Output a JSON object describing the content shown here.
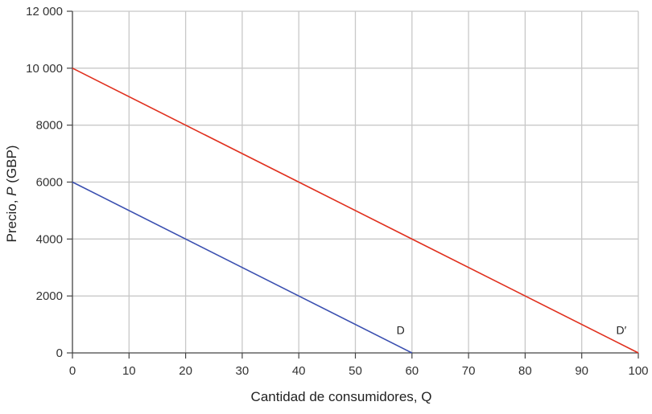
{
  "chart_data": {
    "type": "line",
    "xlabel": "Cantidad de consumidores, Q",
    "ylabel_prefix": "Precio, ",
    "ylabel_var": "P",
    "ylabel_suffix": " (GBP)",
    "xlim": [
      0,
      100
    ],
    "ylim": [
      0,
      12000
    ],
    "xticks": [
      0,
      10,
      20,
      30,
      40,
      50,
      60,
      70,
      80,
      90,
      100
    ],
    "xtick_labels": [
      "0",
      "10",
      "20",
      "30",
      "40",
      "50",
      "60",
      "70",
      "80",
      "90",
      "100"
    ],
    "yticks": [
      0,
      2000,
      4000,
      6000,
      8000,
      10000,
      12000
    ],
    "ytick_labels": [
      "0",
      "2000",
      "4000",
      "6000",
      "8000",
      "10 000",
      "12 000"
    ],
    "grid": true,
    "series": [
      {
        "name": "D",
        "color": "#3a4fb0",
        "x": [
          0,
          60
        ],
        "y": [
          6000,
          0
        ],
        "label_at": [
          58,
          800
        ]
      },
      {
        "name": "D′",
        "color": "#e0301e",
        "x": [
          0,
          100
        ],
        "y": [
          10000,
          0
        ],
        "label_at": [
          97,
          800
        ]
      }
    ]
  }
}
